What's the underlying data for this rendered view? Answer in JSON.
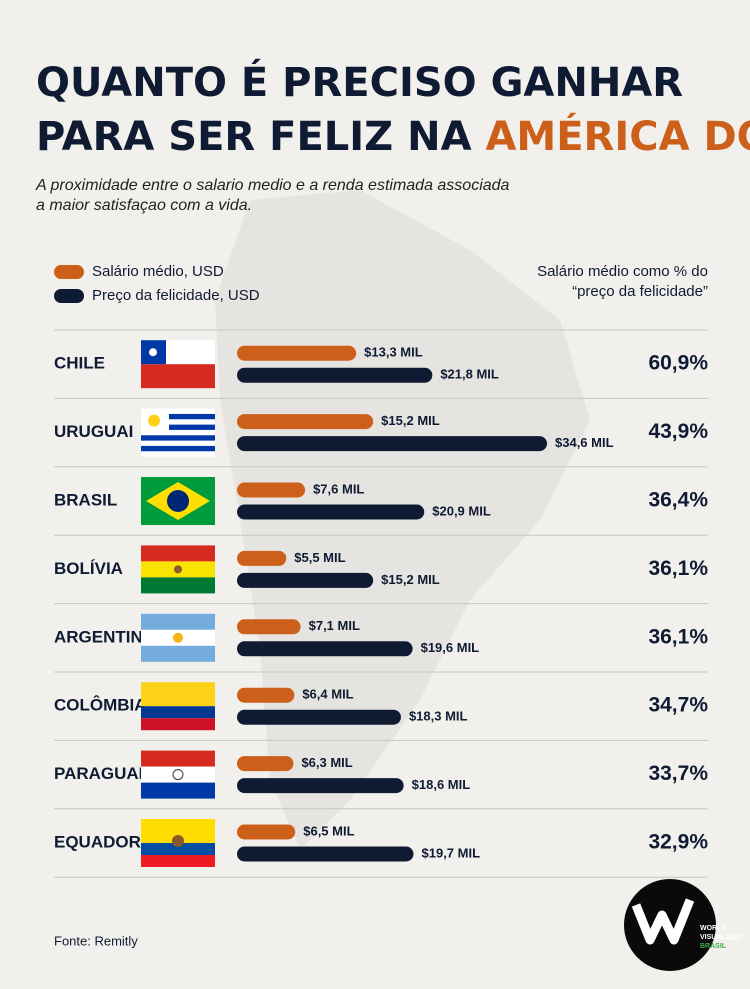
{
  "chart_data": {
    "type": "bar",
    "title": {
      "line1": "QUANTO É PRECISO GANHAR",
      "line2": "PARA SER FELIZ NA",
      "highlight": "AMÉRICA DO SUL",
      "end": "?"
    },
    "subtitle": [
      "A proximidade entre o salario medio e a renda estimada associada",
      "a maior satisfaçao com a vida."
    ],
    "categories": [
      "CHILE",
      "URUGUAI",
      "BRASIL",
      "BOLÍVIA",
      "ARGENTINA",
      "COLÔMBIA",
      "PARAGUAI",
      "EQUADOR"
    ],
    "series": [
      {
        "name": "Salário médio, USD",
        "color": "#cc5f1a",
        "values": [
          13.3,
          15.2,
          7.6,
          5.5,
          7.1,
          6.4,
          6.3,
          6.5
        ],
        "value_labels": [
          "$13,3 MIL",
          "$15,2 MIL",
          "$7,6 MIL",
          "$5,5 MIL",
          "$7,1 MIL",
          "$6,4 MIL",
          "$6,3 MIL",
          "$6,5 MIL"
        ]
      },
      {
        "name": "Preço da felicidade, USD",
        "color": "#0f1a33",
        "values": [
          21.8,
          34.6,
          20.9,
          15.2,
          19.6,
          18.3,
          18.6,
          19.7
        ],
        "value_labels": [
          "$21,8 MIL",
          "$34,6 MIL",
          "$20,9 MIL",
          "$15,2 MIL",
          "$19,6 MIL",
          "$18,3 MIL",
          "$18,6 MIL",
          "$19,7 MIL"
        ]
      }
    ],
    "ratio": {
      "title": [
        "Salário médio como % do",
        "“preço da felicidade”"
      ],
      "values": [
        60.9,
        43.9,
        36.4,
        36.1,
        36.1,
        34.7,
        33.7,
        32.9
      ],
      "value_labels": [
        "60,9%",
        "43,9%",
        "36,4%",
        "36,1%",
        "36,1%",
        "34,7%",
        "33,7%",
        "32,9%"
      ]
    },
    "source": "Fonte: Remitly"
  },
  "logo": [
    "WORLD",
    "VISUALIZED",
    "BRASIL"
  ]
}
